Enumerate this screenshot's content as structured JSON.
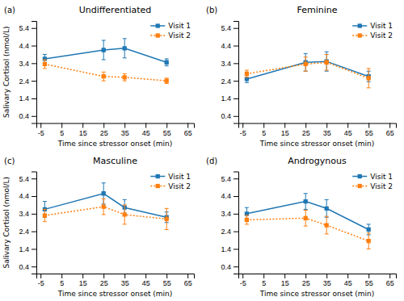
{
  "chart_data": [
    {
      "type": "line",
      "title": "Undifferentiated",
      "annotations": [
        "(a)"
      ],
      "x": [
        -3,
        25,
        35,
        55
      ],
      "series": [
        {
          "name": "Visit 1",
          "values": [
            3.65,
            4.15,
            4.25,
            3.45
          ],
          "errors": [
            0.25,
            0.55,
            0.55,
            0.2
          ],
          "marker": "square",
          "line_style": "solid"
        },
        {
          "name": "Visit 2",
          "values": [
            3.35,
            2.65,
            2.6,
            2.4
          ],
          "errors": [
            0.25,
            0.25,
            0.2,
            0.15
          ],
          "marker": "square",
          "line_style": "dotted"
        }
      ],
      "xlabel": "Time since stressor onset (min)",
      "ylabel": "Salivary Cortisol (nmol/L)",
      "xlim": [
        -7,
        68
      ],
      "xticks": [
        -5,
        5,
        15,
        25,
        35,
        45,
        55,
        65
      ],
      "ylim": [
        0.0,
        5.8
      ],
      "yticks": [
        0.4,
        1.4,
        2.4,
        3.4,
        4.4,
        5.4
      ],
      "legend": "upper right",
      "grid": false
    },
    {
      "type": "line",
      "title": "Feminine",
      "annotations": [
        "(b)"
      ],
      "x": [
        -3,
        25,
        35,
        55
      ],
      "series": [
        {
          "name": "Visit 1",
          "values": [
            2.5,
            3.45,
            3.5,
            2.65
          ],
          "errors": [
            0.2,
            0.5,
            0.55,
            0.3
          ],
          "marker": "square",
          "line_style": "solid"
        },
        {
          "name": "Visit 2",
          "values": [
            2.8,
            3.35,
            3.45,
            2.55
          ],
          "errors": [
            0.2,
            0.4,
            0.45,
            0.55
          ],
          "marker": "square",
          "line_style": "dotted"
        }
      ],
      "xlabel": "Time since stressor onset (min)",
      "xlim": [
        -7,
        68
      ],
      "xticks": [
        -5,
        5,
        15,
        25,
        35,
        45,
        55,
        65
      ],
      "ylim": [
        0.0,
        5.8
      ],
      "yticks": [
        0.4,
        1.4,
        2.4,
        3.4,
        4.4,
        5.4
      ],
      "legend": "upper right",
      "grid": false
    },
    {
      "type": "line",
      "title": "Masculine",
      "annotations": [
        "(c)"
      ],
      "x": [
        -3,
        25,
        35,
        55
      ],
      "series": [
        {
          "name": "Visit 1",
          "values": [
            3.65,
            4.55,
            3.75,
            3.2
          ],
          "errors": [
            0.45,
            0.6,
            0.45,
            0.3
          ],
          "marker": "square",
          "line_style": "solid"
        },
        {
          "name": "Visit 2",
          "values": [
            3.3,
            3.8,
            3.35,
            3.1
          ],
          "errors": [
            0.35,
            0.45,
            0.55,
            0.6
          ],
          "marker": "square",
          "line_style": "dotted"
        }
      ],
      "xlabel": "Time since stressor onset (min)",
      "ylabel": "Salivary Cortisol (nmol/L)",
      "xlim": [
        -7,
        68
      ],
      "xticks": [
        -5,
        5,
        15,
        25,
        35,
        45,
        55,
        65
      ],
      "ylim": [
        0.0,
        5.8
      ],
      "yticks": [
        0.4,
        1.4,
        2.4,
        3.4,
        4.4,
        5.4
      ],
      "legend": "upper right",
      "grid": false
    },
    {
      "type": "line",
      "title": "Androgynous",
      "annotations": [
        "(d)"
      ],
      "x": [
        -3,
        25,
        35,
        55
      ],
      "series": [
        {
          "name": "Visit 1",
          "values": [
            3.4,
            4.1,
            3.7,
            2.5
          ],
          "errors": [
            0.35,
            0.45,
            0.5,
            0.3
          ],
          "marker": "square",
          "line_style": "solid"
        },
        {
          "name": "Visit 2",
          "values": [
            3.05,
            3.15,
            2.75,
            1.85
          ],
          "errors": [
            0.25,
            0.45,
            0.5,
            0.45
          ],
          "marker": "square",
          "line_style": "dotted"
        }
      ],
      "xlabel": "Time since stressor onset (min)",
      "xlim": [
        -7,
        68
      ],
      "xticks": [
        -5,
        5,
        15,
        25,
        35,
        45,
        55,
        65
      ],
      "ylim": [
        0.0,
        5.8
      ],
      "yticks": [
        0.4,
        1.4,
        2.4,
        3.4,
        4.4,
        5.4
      ],
      "legend": "upper right",
      "grid": false
    }
  ]
}
